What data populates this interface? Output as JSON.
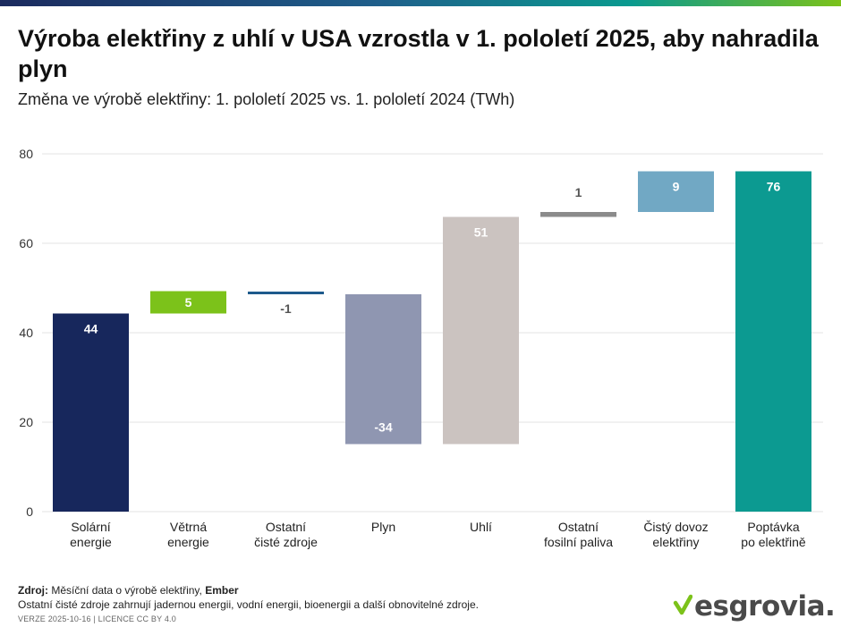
{
  "header": {
    "title": "Výroba elektřiny z uhlí v USA vzrostla v 1. pololetí 2025, aby nahradila plyn",
    "subtitle": "Změna ve výrobě elektřiny: 1. pololetí 2025 vs. 1. pololetí 2024 (TWh)"
  },
  "chart_data": {
    "type": "bar",
    "subtype": "waterfall",
    "title": "Výroba elektřiny z uhlí v USA vzrostla v 1. pololetí 2025, aby nahradila plyn",
    "subtitle": "Změna ve výrobě elektřiny: 1. pololetí 2025 vs. 1. pololetí 2024 (TWh)",
    "ylim": [
      0,
      80
    ],
    "yticks": [
      0,
      20,
      40,
      60,
      80
    ],
    "grid": true,
    "categories": [
      [
        "Solární",
        "energie"
      ],
      [
        "Větrná",
        "energie"
      ],
      [
        "Ostatní",
        "čisté zdroje"
      ],
      [
        "Plyn"
      ],
      [
        "Uhlí"
      ],
      [
        "Ostatní",
        "fosilní paliva"
      ],
      [
        "Čistý dovoz",
        "elektřiny"
      ],
      [
        "Poptávka",
        "po elektřině"
      ]
    ],
    "bars": [
      {
        "start": 0,
        "end": 44.3,
        "label": "44",
        "color": "#17275c",
        "label_color": "#ffffff",
        "label_pos": "inside-top"
      },
      {
        "start": 44.3,
        "end": 49.3,
        "label": "5",
        "color": "#7cc21a",
        "label_color": "#ffffff",
        "label_pos": "inside-center"
      },
      {
        "start": 48.6,
        "end": 49.2,
        "label": "-1",
        "color": "#1d5a8c",
        "label_color": "#555555",
        "label_pos": "below"
      },
      {
        "start": 15.1,
        "end": 48.6,
        "label": "-34",
        "color": "#8f96b1",
        "label_color": "#ffffff",
        "label_pos": "inside-bottom"
      },
      {
        "start": 15.1,
        "end": 65.9,
        "label": "51",
        "color": "#cbc3c0",
        "label_color": "#ffffff",
        "label_pos": "inside-top"
      },
      {
        "start": 65.9,
        "end": 67.0,
        "label": "1",
        "color": "#8b8b8b",
        "label_color": "#555555",
        "label_pos": "above"
      },
      {
        "start": 67.0,
        "end": 76.1,
        "label": "9",
        "color": "#71a8c4",
        "label_color": "#ffffff",
        "label_pos": "inside-top"
      },
      {
        "start": 0,
        "end": 76.1,
        "label": "76",
        "color": "#0c9a91",
        "label_color": "#ffffff",
        "label_pos": "inside-top"
      }
    ]
  },
  "footer": {
    "source_label": "Zdroj:",
    "source_text": "Měsíční data o výrobě elektřiny,",
    "source_org": "Ember",
    "note": "Ostatní čisté zdroje zahrnují jadernou energii, vodní energii, bioenergii a další obnovitelné zdroje.",
    "version": "VERZE 2025-10-16 | LICENCE CC BY 4.0"
  },
  "brand": {
    "name": "esgrovia.",
    "check_color": "#7cc21a"
  }
}
